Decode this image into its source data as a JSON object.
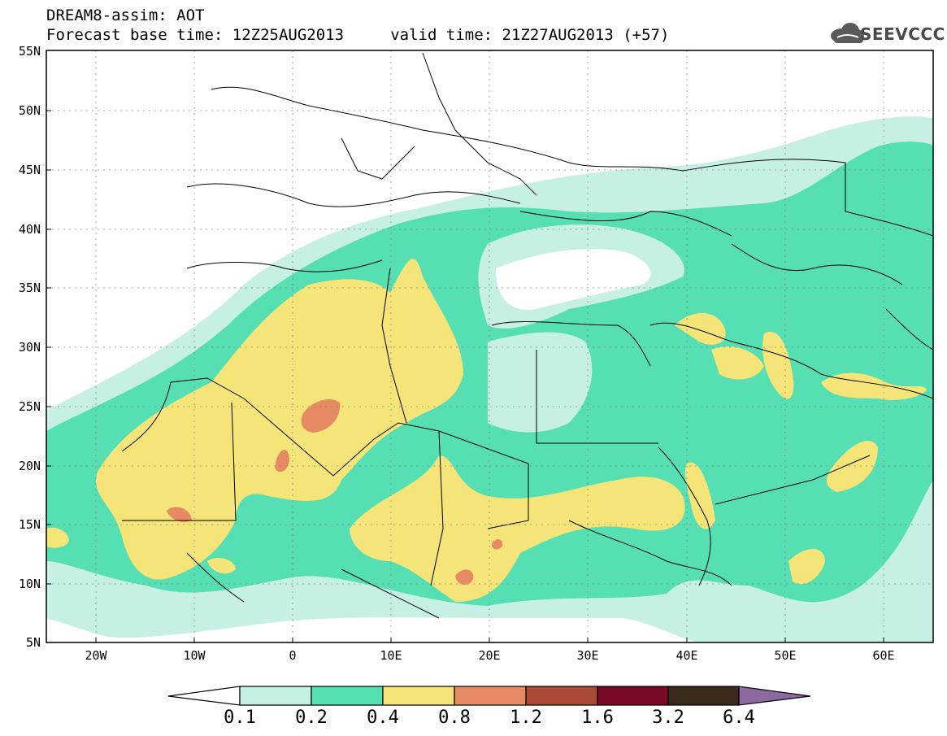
{
  "header": {
    "title_line1": "DREAM8-assim: AOT",
    "title_line2": "Forecast base time: 12Z25AUG2013     valid time: 21Z27AUG2013 (+57)",
    "logo_text": "SEEVCCC"
  },
  "map": {
    "lat_labels": [
      "55N",
      "50N",
      "45N",
      "40N",
      "35N",
      "30N",
      "25N",
      "20N",
      "15N",
      "10N",
      "5N"
    ],
    "lon_labels": [
      "20W",
      "10W",
      "0",
      "10E",
      "20E",
      "30E",
      "40E",
      "50E",
      "60E"
    ],
    "lat_range": [
      5,
      55
    ],
    "lon_range": [
      -25,
      65
    ],
    "grid": true,
    "colors": {
      "ocean": "#ffffff",
      "level_0_1": "#c8f0e8",
      "level_0_2": "#55e0b4",
      "level_0_4": "#f5e47a",
      "level_0_8": "#e8896a",
      "border": "#000000"
    }
  },
  "legend": {
    "labels": [
      "0.1",
      "0.2",
      "0.4",
      "0.8",
      "1.2",
      "1.6",
      "3.2",
      "6.4"
    ],
    "colors": [
      "#ffffff",
      "#c6f0e6",
      "#55dfb2",
      "#f5e478",
      "#e68a64",
      "#a94a36",
      "#7a0a24",
      "#3a2a1c",
      "#8c6aa0"
    ]
  }
}
